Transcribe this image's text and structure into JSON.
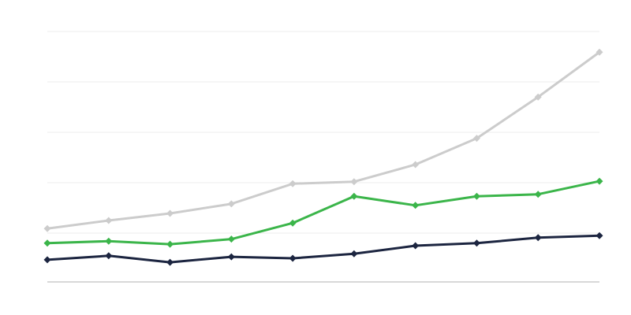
{
  "chart_data": {
    "type": "line",
    "title": "",
    "xlabel": "",
    "ylabel": "",
    "x": [
      1,
      2,
      3,
      4,
      5,
      6,
      7,
      8,
      9,
      10
    ],
    "ylim": [
      0,
      5
    ],
    "yticks": [
      0,
      1,
      2,
      3,
      4,
      5
    ],
    "grid": true,
    "legend": "none",
    "marker": "diamond",
    "series": [
      {
        "color": "#cccccc",
        "values": [
          1.09,
          1.25,
          1.39,
          1.58,
          1.98,
          2.02,
          2.36,
          2.88,
          3.7,
          4.59
        ]
      },
      {
        "color": "#3bb54a",
        "values": [
          0.8,
          0.84,
          0.78,
          0.88,
          1.2,
          1.73,
          1.55,
          1.73,
          1.77,
          2.03
        ]
      },
      {
        "color": "#1c2540",
        "values": [
          0.47,
          0.55,
          0.42,
          0.53,
          0.5,
          0.59,
          0.75,
          0.8,
          0.91,
          0.95
        ]
      }
    ]
  }
}
